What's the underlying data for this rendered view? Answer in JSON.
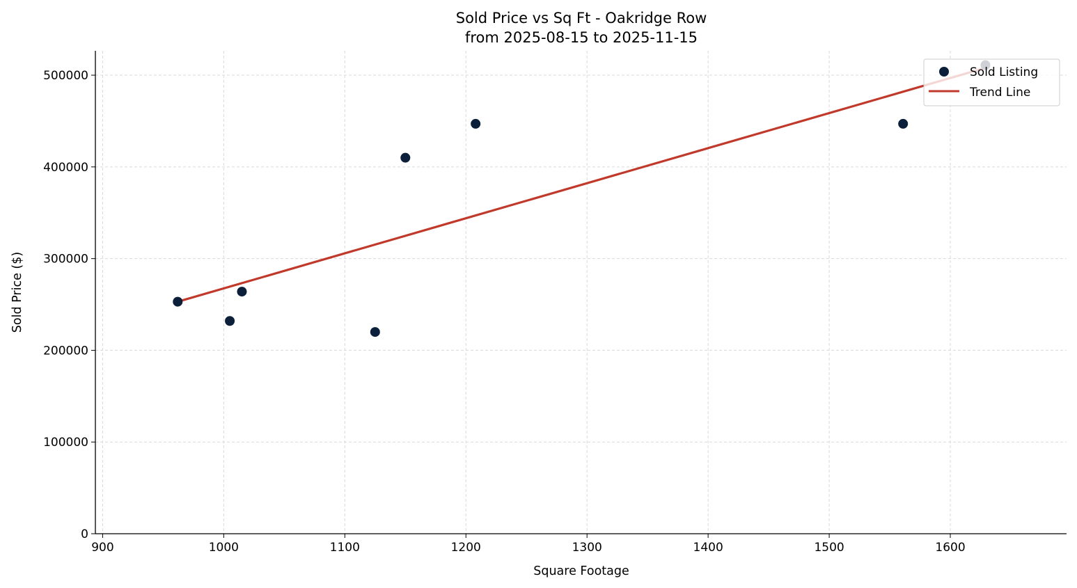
{
  "chart_data": {
    "type": "scatter",
    "title": "Sold Price vs Sq Ft - Oakridge Row",
    "subtitle": "from 2025-08-15 to 2025-11-15",
    "xlabel": "Square Footage",
    "ylabel": "Sold Price ($)",
    "xlim": [
      894,
      1696
    ],
    "ylim": [
      0,
      526600
    ],
    "xticks": [
      900,
      1000,
      1100,
      1200,
      1300,
      1400,
      1500,
      1600
    ],
    "yticks": [
      0,
      100000,
      200000,
      300000,
      400000,
      500000
    ],
    "grid": true,
    "legend_placement": "top-right",
    "series": [
      {
        "name": "Sold Listing",
        "kind": "scatter",
        "color": "#0b1f3a",
        "points": [
          [
            962,
            253000
          ],
          [
            1005,
            232000
          ],
          [
            1015,
            264000
          ],
          [
            1125,
            220000
          ],
          [
            1150,
            410000
          ],
          [
            1208,
            447000
          ],
          [
            1561,
            447000
          ],
          [
            1629,
            511000
          ]
        ]
      },
      {
        "name": "Trend Line",
        "kind": "line",
        "color": "#c0392b",
        "points": [
          [
            962,
            253000
          ],
          [
            1629,
            508000
          ]
        ]
      }
    ]
  }
}
